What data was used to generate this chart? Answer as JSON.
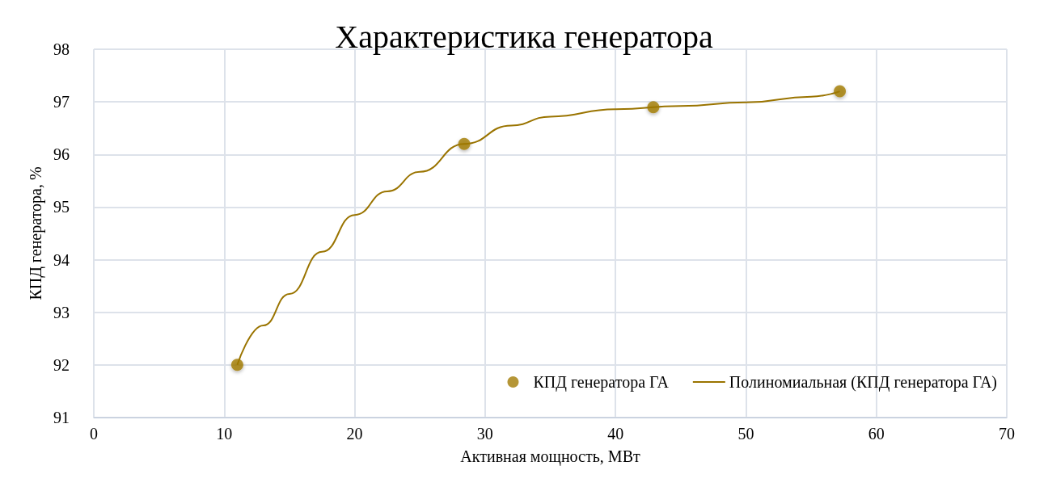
{
  "chart_data": {
    "type": "scatter",
    "title": "Характеристика генератора",
    "xlabel": "Активная мощность, МВт",
    "ylabel": "КПД генератора, %",
    "series": [
      {
        "name": "КПД генератора ГА",
        "color": "#a27c05",
        "marker": "circle",
        "x": [
          11,
          28.4,
          42.9,
          57.2
        ],
        "values": [
          92,
          96.2,
          96.9,
          97.2
        ]
      },
      {
        "name": "Полиномиальная (КПД генератора ГА)",
        "type": "line",
        "color": "#9a7400",
        "marker": "none",
        "line_style": "solid",
        "x": [
          11,
          13,
          15,
          17.5,
          20,
          22.5,
          25,
          28.4,
          32,
          35,
          40,
          45,
          50,
          55,
          57.2
        ],
        "values": [
          92,
          92.75,
          93.35,
          94.15,
          94.85,
          95.3,
          95.67,
          96.2,
          96.55,
          96.72,
          96.86,
          96.92,
          96.99,
          97.1,
          97.2
        ]
      }
    ],
    "xlim": [
      0,
      70
    ],
    "xticks": [
      0,
      10,
      20,
      30,
      40,
      50,
      60,
      70
    ],
    "ylim": [
      91,
      98
    ],
    "yticks": [
      91,
      92,
      93,
      94,
      95,
      96,
      97,
      98
    ],
    "grid": true,
    "legend": "bottom right"
  }
}
